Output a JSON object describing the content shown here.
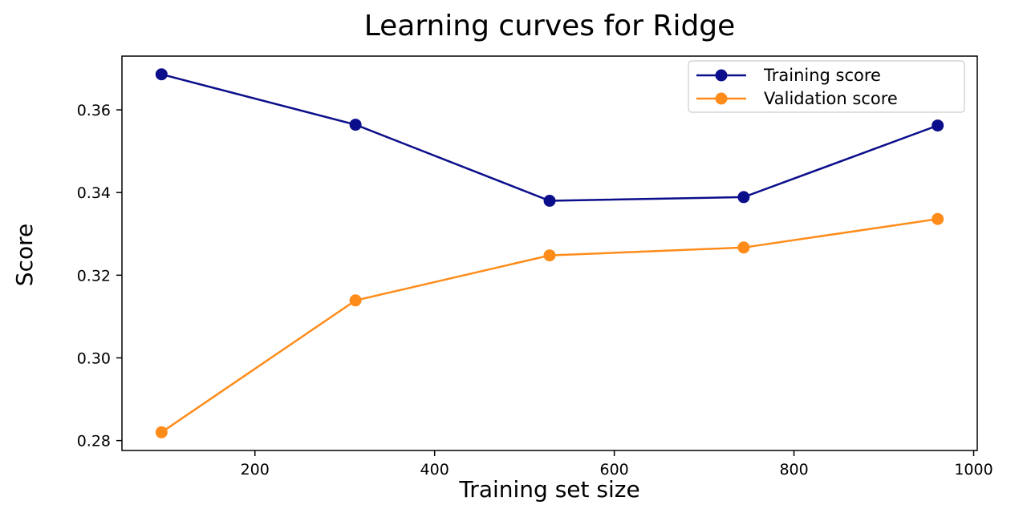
{
  "chart_data": {
    "type": "line",
    "title": "Learning curves for Ridge",
    "xlabel": "Training set size",
    "ylabel": "Score",
    "x": [
      96,
      312,
      528,
      744,
      960
    ],
    "series": [
      {
        "name": "Training score",
        "color": "#0b0e8a",
        "values": [
          0.3686,
          0.3564,
          0.338,
          0.3389,
          0.3562
        ]
      },
      {
        "name": "Validation score",
        "color": "#ff8c1a",
        "values": [
          0.282,
          0.3139,
          0.3248,
          0.3267,
          0.3336
        ]
      }
    ],
    "xlim": [
      52,
      1004
    ],
    "ylim": [
      0.2776,
      0.373
    ],
    "xticks": [
      200,
      400,
      600,
      800,
      1000
    ],
    "xtick_labels": [
      "200",
      "400",
      "600",
      "800",
      "1000"
    ],
    "yticks": [
      0.28,
      0.3,
      0.32,
      0.34,
      0.36
    ],
    "ytick_labels": [
      "0.28",
      "0.30",
      "0.32",
      "0.34",
      "0.36"
    ],
    "grid": false,
    "legend": "top-right"
  }
}
